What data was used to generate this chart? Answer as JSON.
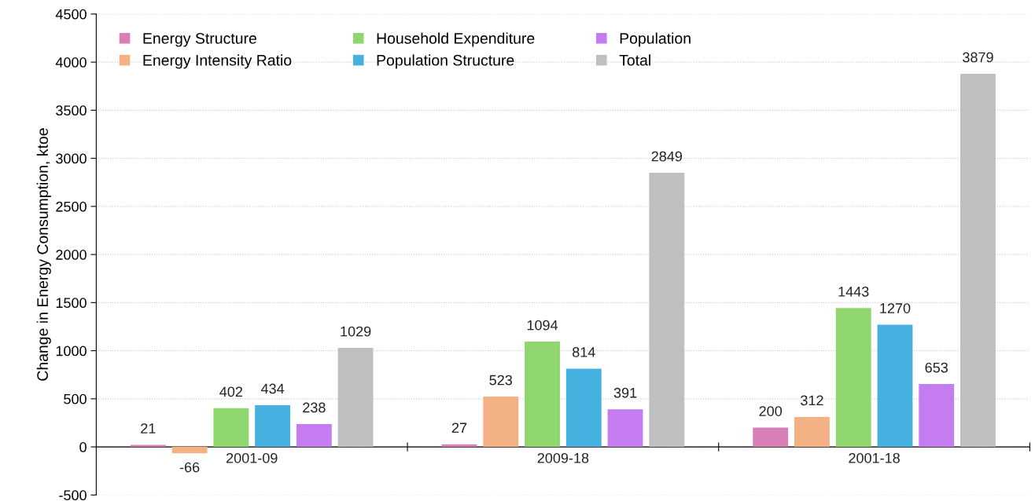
{
  "chart_data": {
    "type": "bar",
    "ylabel": "Change in Energy Consumption, ktoe",
    "categories": [
      "2001-09",
      "2009-18",
      "2001-18"
    ],
    "series": [
      {
        "name": "Energy Structure",
        "color": "#d87fb8",
        "values": [
          21,
          27,
          200
        ]
      },
      {
        "name": "Energy Intensity Ratio",
        "color": "#f4b183",
        "values": [
          -66,
          523,
          312
        ]
      },
      {
        "name": "Household Expenditure",
        "color": "#8fd66f",
        "values": [
          402,
          1094,
          1443
        ]
      },
      {
        "name": "Population Structure",
        "color": "#45b1e0",
        "values": [
          434,
          814,
          1270
        ]
      },
      {
        "name": "Population",
        "color": "#c57cf0",
        "values": [
          238,
          391,
          653
        ]
      },
      {
        "name": "Total",
        "color": "#bfbfbf",
        "values": [
          1029,
          2849,
          3879
        ]
      }
    ],
    "ylim": [
      -500,
      4500
    ],
    "yticks": [
      -500,
      0,
      500,
      1000,
      1500,
      2000,
      2500,
      3000,
      3500,
      4000,
      4500
    ],
    "grid": "y",
    "legend": "top left",
    "data_labels": true
  }
}
